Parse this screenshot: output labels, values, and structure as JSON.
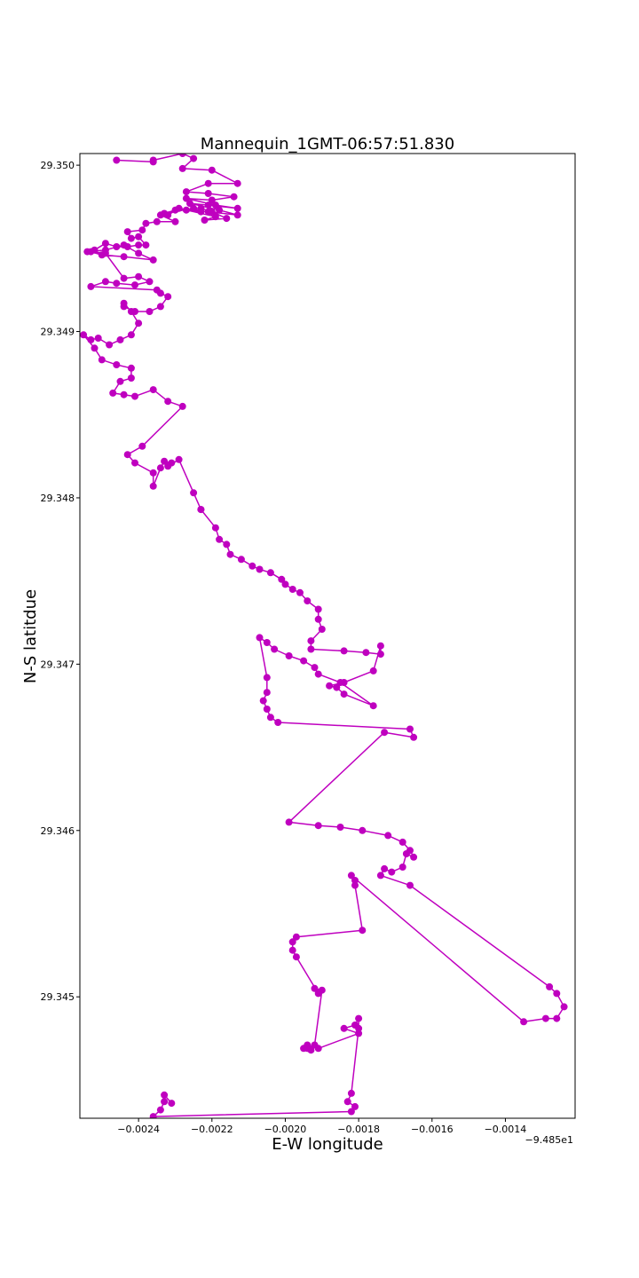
{
  "chart_data": {
    "type": "line",
    "title": "Mannequin_1GMT-06:57:51.830",
    "xlabel": "E-W longitude",
    "ylabel": "N-S latitdue",
    "x_offset_label": "−9.485e1",
    "x_offset_value": -94.85,
    "xlim": [
      -0.00256,
      -0.00121
    ],
    "ylim": [
      29.34427,
      29.35007
    ],
    "xticks": [
      -0.0024,
      -0.0022,
      -0.002,
      -0.0018,
      -0.0016,
      -0.0014
    ],
    "xtick_labels": [
      "−0.0024",
      "−0.0022",
      "−0.0020",
      "−0.0018",
      "−0.0016",
      "−0.0014"
    ],
    "yticks": [
      29.345,
      29.346,
      29.347,
      29.348,
      29.349,
      29.35
    ],
    "ytick_labels": [
      "29.345",
      "29.346",
      "29.347",
      "29.348",
      "29.349",
      "29.350"
    ],
    "grid": false,
    "legend": "none",
    "colors": {
      "series": "#bf00bf",
      "axes": "#000000",
      "background": "#ffffff"
    },
    "series": [
      {
        "marker": "circle",
        "x": [
          -0.00246,
          -0.00236,
          -0.00236,
          -0.00228,
          -0.00225,
          -0.00228,
          -0.0022,
          -0.00213,
          -0.00221,
          -0.00227,
          -0.00221,
          -0.00214,
          -0.0022,
          -0.00227,
          -0.00219,
          -0.00213,
          -0.00221,
          -0.00226,
          -0.00218,
          -0.00213,
          -0.00221,
          -0.00227,
          -0.00219,
          -0.00222,
          -0.00216,
          -0.0022,
          -0.00223,
          -0.0023,
          -0.00233,
          -0.00225,
          -0.00223,
          -0.00229,
          -0.00232,
          -0.00234,
          -0.0023,
          -0.00235,
          -0.00238,
          -0.00239,
          -0.00243,
          -0.00242,
          -0.0024,
          -0.00238,
          -0.0024,
          -0.00243,
          -0.00246,
          -0.00249,
          -0.00252,
          -0.00254,
          -0.00249,
          -0.00244,
          -0.0024,
          -0.00236,
          -0.00244,
          -0.0025,
          -0.00253,
          -0.00249,
          -0.00244,
          -0.0024,
          -0.00237,
          -0.00241,
          -0.00246,
          -0.00249,
          -0.00253,
          -0.00235,
          -0.00234,
          -0.00232,
          -0.00234,
          -0.00237,
          -0.00241,
          -0.00244,
          -0.00244,
          -0.00242,
          -0.0024,
          -0.00242,
          -0.00245,
          -0.00248,
          -0.00251,
          -0.00253,
          -0.00255,
          -0.00252,
          -0.0025,
          -0.00246,
          -0.00242,
          -0.00242,
          -0.00245,
          -0.00247,
          -0.00244,
          -0.00241,
          -0.00236,
          -0.00232,
          -0.00228,
          -0.00239,
          -0.00243,
          -0.00241,
          -0.00236,
          -0.00236,
          -0.00234,
          -0.00233,
          -0.00231,
          -0.00232,
          -0.00229,
          -0.00225,
          -0.00223,
          -0.00223,
          -0.00219,
          -0.00218,
          -0.00216,
          -0.00215,
          -0.00212,
          -0.00209,
          -0.00207,
          -0.00204,
          -0.00201,
          -0.002,
          -0.00198,
          -0.00196,
          -0.00194,
          -0.00191,
          -0.00191,
          -0.0019,
          -0.00193,
          -0.00193,
          -0.00184,
          -0.00178,
          -0.00174,
          -0.00174,
          -0.00176,
          -0.00184,
          -0.00188,
          -0.00186,
          -0.00184,
          -0.00176,
          -0.00185,
          -0.00191,
          -0.00192,
          -0.00195,
          -0.00199,
          -0.00203,
          -0.00205,
          -0.00207,
          -0.00205,
          -0.00205,
          -0.00206,
          -0.00205,
          -0.00204,
          -0.00202,
          -0.00166,
          -0.00165,
          -0.00173,
          -0.00199,
          -0.00191,
          -0.00185,
          -0.00179,
          -0.00172,
          -0.00168,
          -0.00166,
          -0.00165,
          -0.00167,
          -0.00168,
          -0.00171,
          -0.00173,
          -0.00174,
          -0.00166,
          -0.00128,
          -0.00126,
          -0.00124,
          -0.00126,
          -0.00129,
          -0.00135,
          -0.00182,
          -0.00181,
          -0.00181,
          -0.00179,
          -0.00197,
          -0.00198,
          -0.00198,
          -0.00197,
          -0.00191,
          -0.00192,
          -0.0019,
          -0.00192,
          -0.00194,
          -0.00193,
          -0.00195,
          -0.00194,
          -0.00191,
          -0.0018,
          -0.00184,
          -0.00181,
          -0.0018,
          -0.0018,
          -0.00182,
          -0.00183,
          -0.00181,
          -0.00182,
          -0.00236,
          -0.00234,
          -0.00233,
          -0.00233,
          -0.00231
        ],
        "y": [
          29.35003,
          29.35002,
          29.35003,
          29.35007,
          29.35004,
          29.34998,
          29.34997,
          29.34989,
          29.34989,
          29.34984,
          29.34983,
          29.34981,
          29.34979,
          29.3498,
          29.34976,
          29.34974,
          29.34976,
          29.34977,
          29.34973,
          29.3497,
          29.34972,
          29.34973,
          29.34969,
          29.34967,
          29.34968,
          29.34972,
          29.34974,
          29.34973,
          29.34971,
          29.34974,
          29.34972,
          29.34974,
          29.3497,
          29.3497,
          29.34966,
          29.34966,
          29.34965,
          29.34961,
          29.3496,
          29.34956,
          29.34957,
          29.34952,
          29.34952,
          29.34951,
          29.34951,
          29.34953,
          29.34949,
          29.34948,
          29.34949,
          29.34952,
          29.34947,
          29.34943,
          29.34945,
          29.34946,
          29.34948,
          29.34947,
          29.34932,
          29.34933,
          29.3493,
          29.34928,
          29.34929,
          29.3493,
          29.34927,
          29.34925,
          29.34923,
          29.34921,
          29.34915,
          29.34912,
          29.34912,
          29.34915,
          29.34917,
          29.34912,
          29.34905,
          29.34898,
          29.34895,
          29.34892,
          29.34896,
          29.34895,
          29.34898,
          29.3489,
          29.34883,
          29.3488,
          29.34878,
          29.34872,
          29.3487,
          29.34863,
          29.34862,
          29.34861,
          29.34865,
          29.34858,
          29.34855,
          29.34831,
          29.34826,
          29.34821,
          29.34815,
          29.34807,
          29.34818,
          29.34822,
          29.34821,
          29.34819,
          29.34823,
          29.34803,
          29.34793,
          29.34793,
          29.34782,
          29.34775,
          29.34772,
          29.34766,
          29.34763,
          29.34759,
          29.34757,
          29.34755,
          29.34751,
          29.34748,
          29.34745,
          29.34743,
          29.34738,
          29.34733,
          29.34727,
          29.34721,
          29.34714,
          29.34709,
          29.34708,
          29.34707,
          29.34706,
          29.34711,
          29.34696,
          29.34689,
          29.34687,
          29.34686,
          29.34682,
          29.34675,
          29.34689,
          29.34694,
          29.34698,
          29.34702,
          29.34705,
          29.34709,
          29.34713,
          29.34716,
          29.34692,
          29.34683,
          29.34678,
          29.34673,
          29.34668,
          29.34665,
          29.34661,
          29.34656,
          29.34659,
          29.34605,
          29.34603,
          29.34602,
          29.346,
          29.34597,
          29.34593,
          29.34588,
          29.34584,
          29.34586,
          29.34578,
          29.34575,
          29.34577,
          29.34573,
          29.34567,
          29.34506,
          29.34502,
          29.34494,
          29.34487,
          29.34487,
          29.34485,
          29.34573,
          29.3457,
          29.34567,
          29.3454,
          29.34536,
          29.34533,
          29.34528,
          29.34524,
          29.34502,
          29.34505,
          29.34504,
          29.34471,
          29.34469,
          29.34468,
          29.34469,
          29.34471,
          29.34469,
          29.34478,
          29.34481,
          29.34483,
          29.34487,
          29.34481,
          29.34442,
          29.34437,
          29.34434,
          29.34431,
          29.34428,
          29.34432,
          29.34437,
          29.34441,
          29.34436
        ]
      }
    ]
  }
}
